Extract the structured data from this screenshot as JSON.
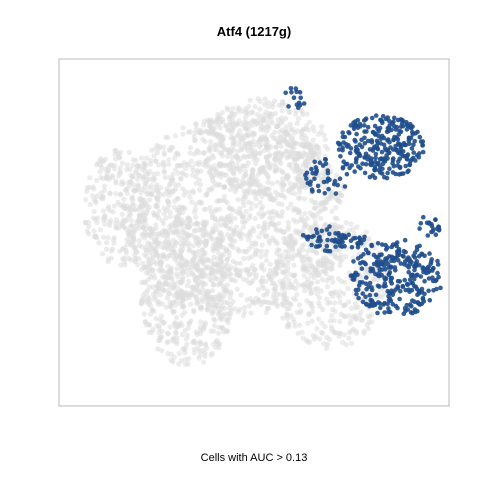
{
  "chart_data": {
    "type": "scatter",
    "title": "Atf4 (1217g)",
    "xlabel": "Cells with AUC > 0.13",
    "ylabel": "",
    "grid": false,
    "legend": "none",
    "xlim": [
      0,
      100
    ],
    "ylim": [
      0,
      100
    ],
    "colors": {
      "background_cells": "#dcdcdc",
      "active_cells": "#1f4e8c",
      "frame": "#b8b8b8"
    },
    "series": [
      {
        "role": "background",
        "regions": [
          {
            "x": [
              15,
              75
            ],
            "y": [
              25,
              85
            ],
            "n": 1400
          },
          {
            "x": [
              20,
              45
            ],
            "y": [
              10,
              55
            ],
            "n": 500
          },
          {
            "x": [
              35,
              70
            ],
            "y": [
              60,
              90
            ],
            "n": 400
          },
          {
            "x": [
              55,
              85
            ],
            "y": [
              15,
              55
            ],
            "n": 350
          },
          {
            "x": [
              5,
              25
            ],
            "y": [
              40,
              75
            ],
            "n": 250
          }
        ]
      },
      {
        "role": "active",
        "regions": [
          {
            "x": [
              72,
              95
            ],
            "y": [
              66,
              85
            ],
            "n": 260
          },
          {
            "x": [
              63,
              75
            ],
            "y": [
              61,
              72
            ],
            "n": 40
          },
          {
            "x": [
              75,
              100
            ],
            "y": [
              25,
              48
            ],
            "n": 280
          },
          {
            "x": [
              62,
              75
            ],
            "y": [
              44,
              52
            ],
            "n": 40
          },
          {
            "x": [
              93,
              100
            ],
            "y": [
              49,
              55
            ],
            "n": 20
          },
          {
            "x": [
              58,
              64
            ],
            "y": [
              86,
              95
            ],
            "n": 14
          },
          {
            "x": [
              70,
              80
            ],
            "y": [
              45,
              50
            ],
            "n": 25
          }
        ]
      }
    ]
  }
}
